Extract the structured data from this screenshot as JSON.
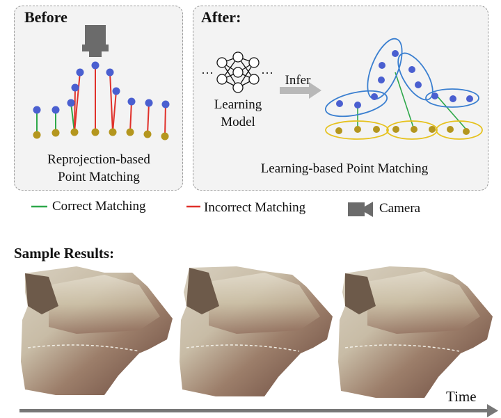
{
  "before": {
    "title": "Before",
    "caption_line1": "Reprojection-based",
    "caption_line2": "Point Matching"
  },
  "after": {
    "title": "After:",
    "model_line1": "Learning",
    "model_line2": "Model",
    "infer_label": "Infer",
    "ellipsis_left": "···",
    "ellipsis_right": "···",
    "caption": "Learning-based Point Matching"
  },
  "legend": {
    "correct": "Correct Matching",
    "incorrect": "Incorrect Matching",
    "camera": "Camera"
  },
  "colors": {
    "correct": "#2ea84a",
    "incorrect": "#e0302a",
    "blue_point": "#4a5fd0",
    "gold_point": "#b4961e",
    "blue_ellipse": "#3a7fd0",
    "gold_ellipse": "#e6c21e",
    "camera": "#6b6b6b"
  },
  "samples": {
    "title": "Sample Results:",
    "time_label": "Time"
  }
}
